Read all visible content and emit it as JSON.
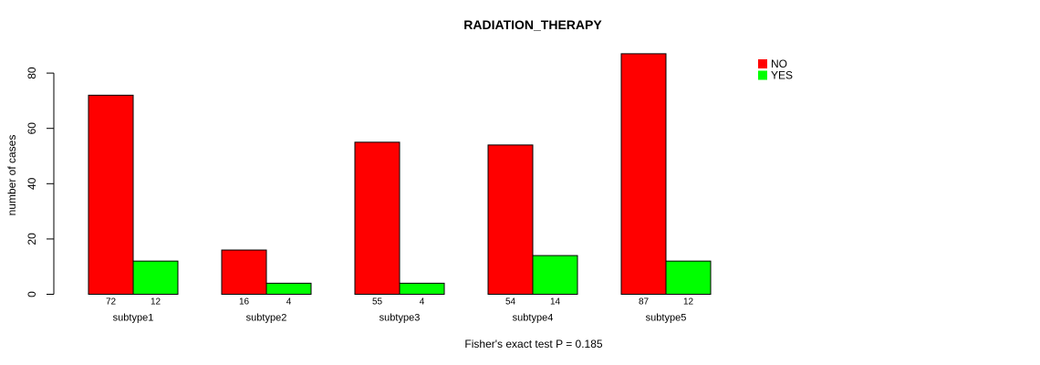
{
  "chart_data": {
    "type": "bar",
    "title": "RADIATION_THERAPY",
    "categories": [
      "subtype1",
      "subtype2",
      "subtype3",
      "subtype4",
      "subtype5"
    ],
    "series": [
      {
        "name": "NO",
        "color": "#FF0000",
        "values": [
          72,
          16,
          55,
          54,
          87
        ]
      },
      {
        "name": "YES",
        "color": "#00FF00",
        "values": [
          12,
          4,
          4,
          14,
          12
        ]
      }
    ],
    "xlabel": "",
    "ylabel": "number of cases",
    "yticks": [
      0,
      20,
      40,
      60,
      80
    ],
    "ylim": [
      0,
      80
    ],
    "grid": false,
    "bar_value_labels": true,
    "bar_border": "#000000",
    "legend_position": "top-right",
    "annotation": "Fisher's exact test P = 0.185"
  }
}
